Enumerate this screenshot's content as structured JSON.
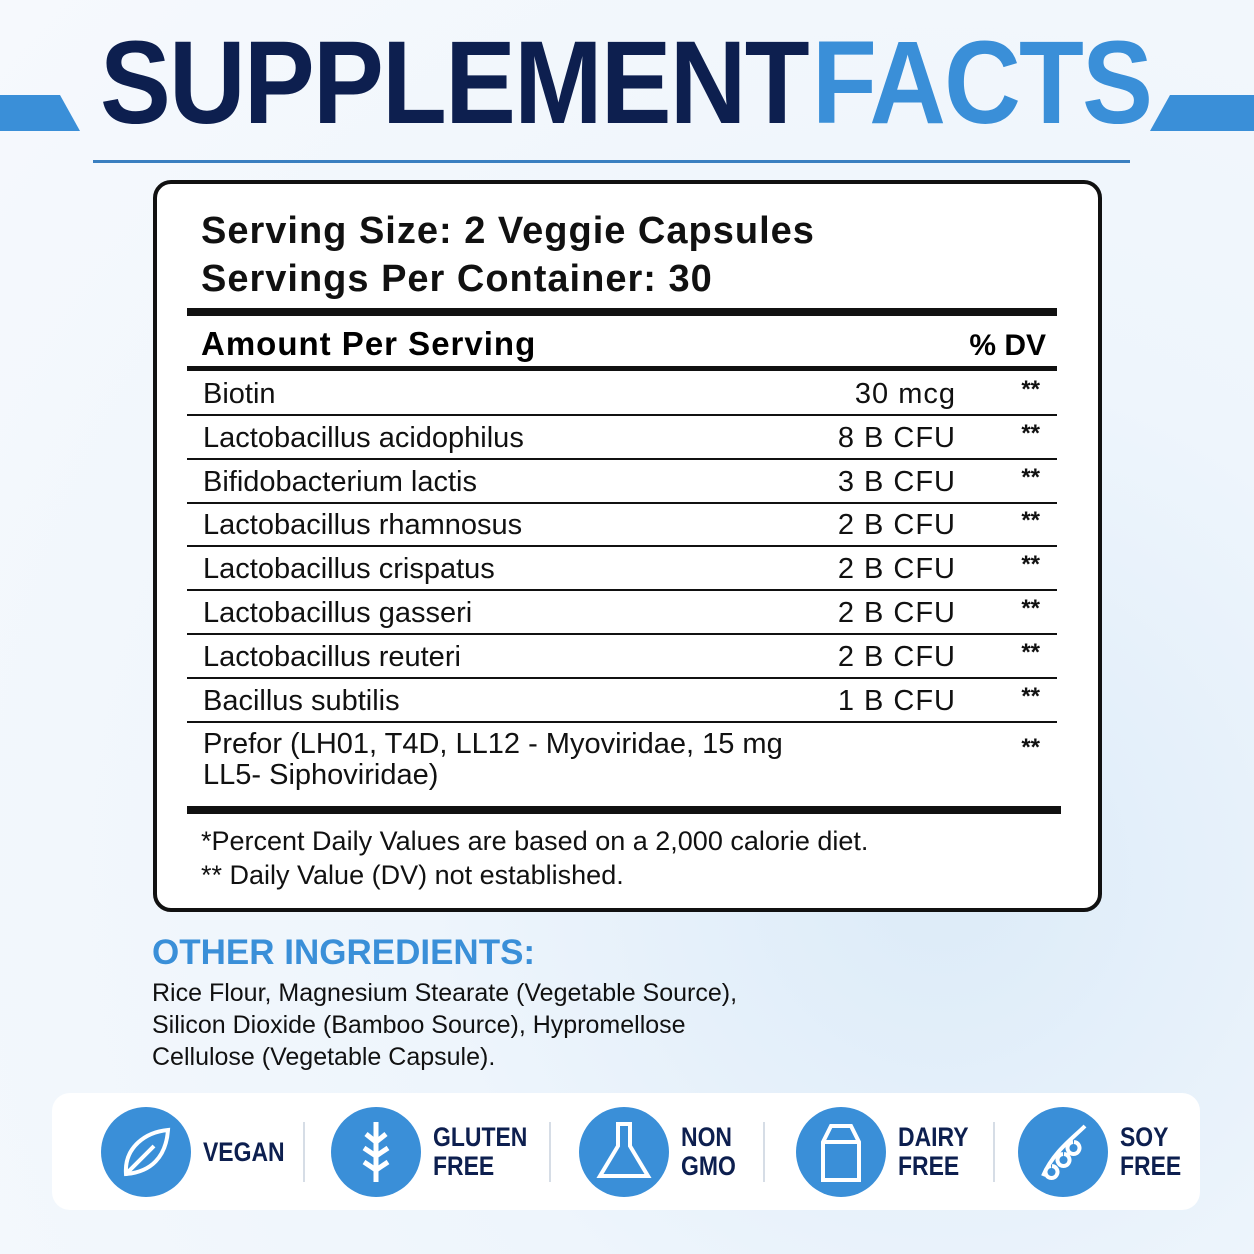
{
  "header": {
    "title_dark": "SUPPLEMENT",
    "title_light": "FACTS"
  },
  "facts": {
    "serving_size": "Serving Size: 2 Veggie Capsules",
    "servings_per_container": "Servings Per Container: 30",
    "amount_header": "Amount Per Serving",
    "dv_header": "% DV",
    "rows": [
      {
        "name": "Biotin",
        "amount": "30 mcg",
        "dv": "**"
      },
      {
        "name": "Lactobacillus acidophilus",
        "amount": "8 B CFU",
        "dv": "**"
      },
      {
        "name": "Bifidobacterium lactis",
        "amount": "3 B CFU",
        "dv": "**"
      },
      {
        "name": "Lactobacillus rhamnosus",
        "amount": "2 B CFU",
        "dv": "**"
      },
      {
        "name": "Lactobacillus crispatus",
        "amount": "2 B CFU",
        "dv": "**"
      },
      {
        "name": "Lactobacillus gasseri",
        "amount": "2 B CFU",
        "dv": "**"
      },
      {
        "name": "Lactobacillus reuteri",
        "amount": "2 B CFU",
        "dv": "**"
      },
      {
        "name": "Bacillus subtilis",
        "amount": "1 B CFU",
        "dv": "**"
      }
    ],
    "prefor": {
      "lines": [
        "Prefor (LH01, T4D, LL12 - Myoviridae, 15 mg",
        "LL5- Siphoviridae)"
      ],
      "dv": "**"
    },
    "footnotes": [
      "*Percent Daily Values are based on a 2,000 calorie diet.",
      "** Daily Value (DV) not established."
    ]
  },
  "other_ingredients": {
    "title": "OTHER INGREDIENTS:",
    "lines": [
      "Rice Flour, Magnesium Stearate (Vegetable Source),",
      "Silicon Dioxide (Bamboo Source), Hypromellose",
      "Cellulose (Vegetable Capsule)."
    ]
  },
  "badges": [
    [
      "VEGAN"
    ],
    [
      "GLUTEN",
      "FREE"
    ],
    [
      "NON",
      "GMO"
    ],
    [
      "DAIRY",
      "FREE"
    ],
    [
      "SOY",
      "FREE"
    ]
  ]
}
